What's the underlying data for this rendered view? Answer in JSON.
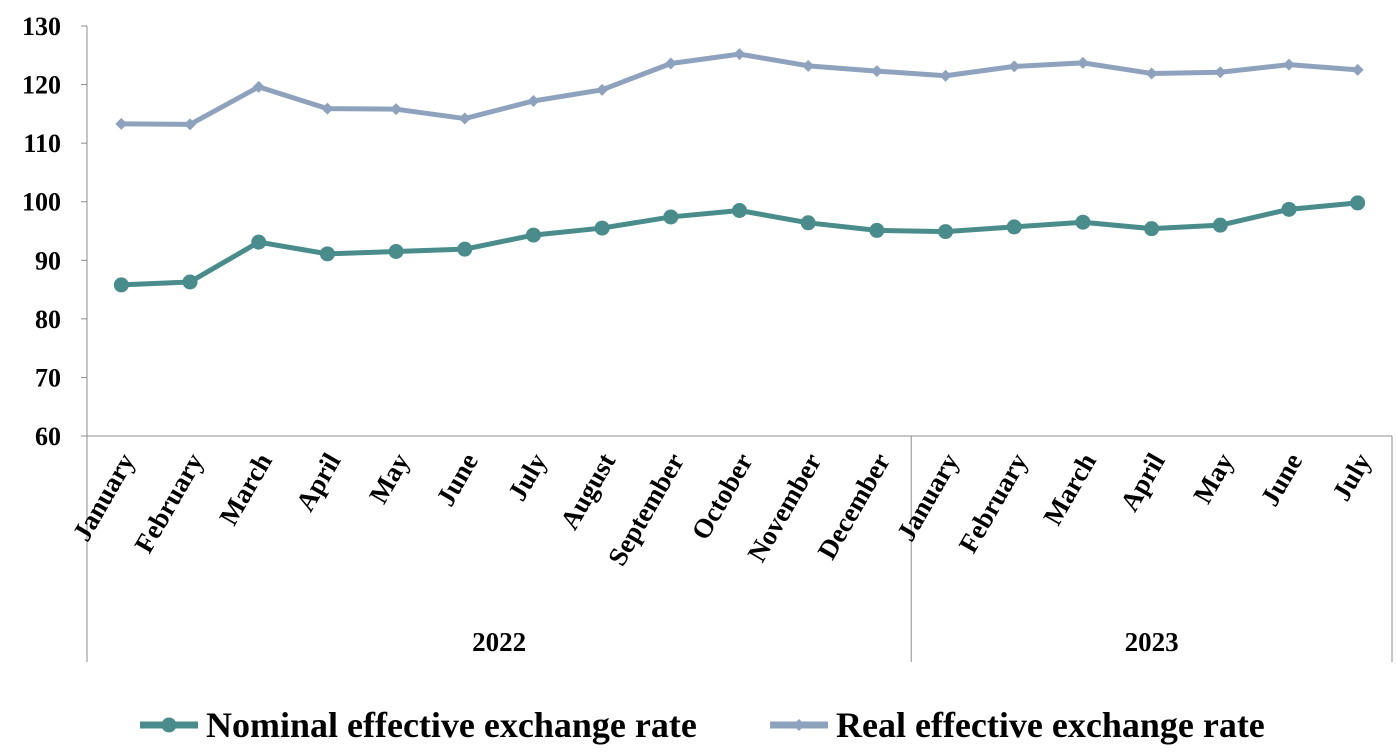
{
  "chart_data": {
    "type": "line",
    "title": "",
    "xlabel": "",
    "ylabel": "",
    "ylim": [
      60,
      130
    ],
    "yticks": [
      60,
      70,
      80,
      90,
      100,
      110,
      120,
      130
    ],
    "categories": [
      "January",
      "February",
      "March",
      "April",
      "May",
      "June",
      "July",
      "August",
      "September",
      "October",
      "November",
      "December",
      "January",
      "February",
      "March",
      "April",
      "May",
      "June",
      "July"
    ],
    "groups": [
      {
        "label": "2022",
        "count": 12
      },
      {
        "label": "2023",
        "count": 7
      }
    ],
    "grid": false,
    "legend_position": "bottom",
    "series": [
      {
        "name": "Nominal effective exchange rate",
        "color": "#4a8c8c",
        "marker": "circle",
        "values": [
          85.8,
          86.3,
          93.1,
          91.1,
          91.5,
          91.9,
          94.3,
          95.5,
          97.4,
          98.5,
          96.4,
          95.1,
          94.9,
          95.7,
          96.5,
          95.4,
          96.0,
          98.7,
          99.8
        ]
      },
      {
        "name": "Real effective exchange rate",
        "color": "#8fa2bd",
        "marker": "diamond",
        "values": [
          113.3,
          113.2,
          119.6,
          115.9,
          115.8,
          114.2,
          117.2,
          119.1,
          123.6,
          125.2,
          123.2,
          122.3,
          121.5,
          123.1,
          123.7,
          121.9,
          122.1,
          123.4,
          122.5
        ]
      }
    ]
  }
}
